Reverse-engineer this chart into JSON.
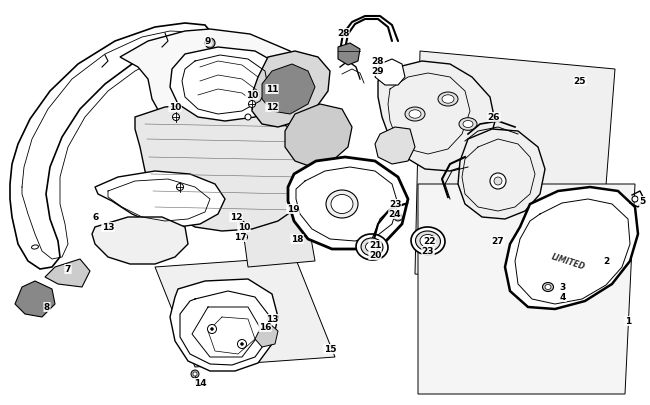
{
  "bg": "#ffffff",
  "lc": "#000000",
  "figsize": [
    6.5,
    4.06
  ],
  "dpi": 100,
  "labels": [
    [
      "1",
      628,
      322
    ],
    [
      "2",
      606,
      262
    ],
    [
      "3",
      563,
      288
    ],
    [
      "4",
      563,
      298
    ],
    [
      "5",
      642,
      202
    ],
    [
      "6",
      96,
      218
    ],
    [
      "13",
      108,
      228
    ],
    [
      "7",
      68,
      270
    ],
    [
      "8",
      47,
      308
    ],
    [
      "9",
      208,
      42
    ],
    [
      "10",
      175,
      108
    ],
    [
      "10",
      252,
      96
    ],
    [
      "10",
      244,
      228
    ],
    [
      "11",
      272,
      90
    ],
    [
      "12",
      272,
      108
    ],
    [
      "12",
      236,
      218
    ],
    [
      "17",
      240,
      238
    ],
    [
      "13",
      272,
      320
    ],
    [
      "16",
      265,
      328
    ],
    [
      "14",
      200,
      384
    ],
    [
      "15",
      330,
      350
    ],
    [
      "18",
      297,
      240
    ],
    [
      "19",
      293,
      210
    ],
    [
      "20",
      375,
      256
    ],
    [
      "21",
      375,
      246
    ],
    [
      "22",
      430,
      242
    ],
    [
      "23",
      395,
      205
    ],
    [
      "23",
      428,
      252
    ],
    [
      "24",
      395,
      215
    ],
    [
      "25",
      580,
      82
    ],
    [
      "26",
      494,
      118
    ],
    [
      "27",
      498,
      242
    ],
    [
      "28",
      343,
      34
    ],
    [
      "28",
      378,
      62
    ],
    [
      "29",
      378,
      72
    ]
  ]
}
